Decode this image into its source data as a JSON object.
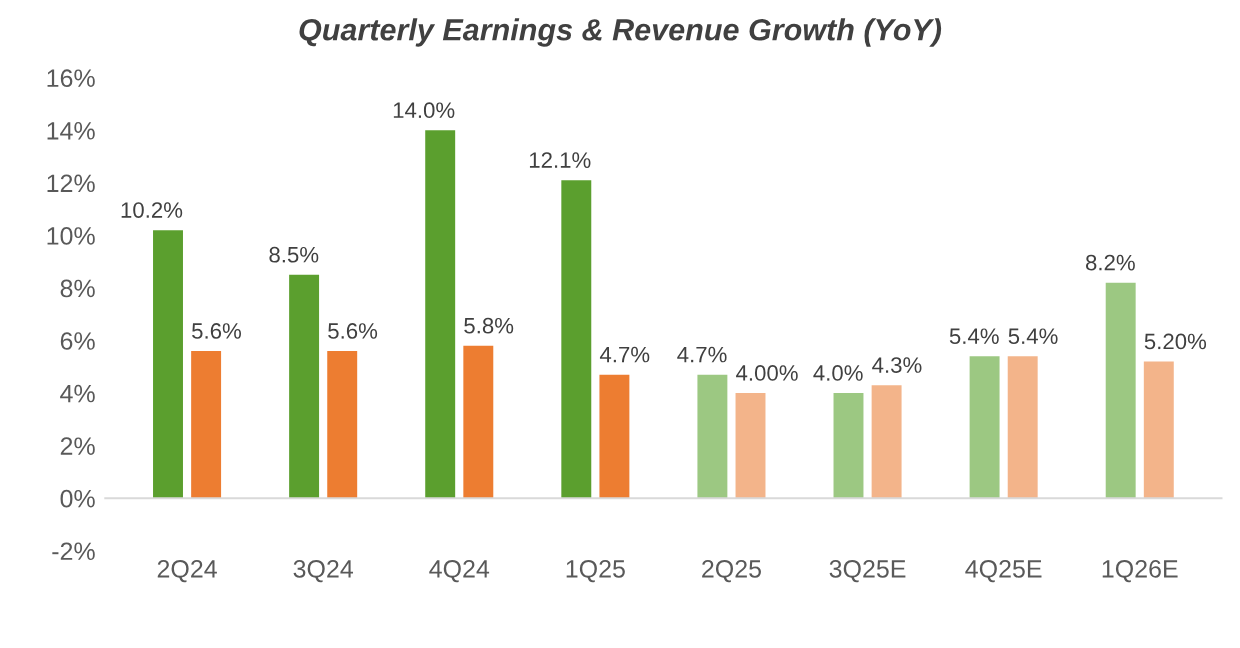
{
  "chart_data": {
    "type": "bar",
    "title": "Quarterly Earnings & Revenue Growth (YoY)",
    "categories": [
      "2Q24",
      "3Q24",
      "4Q24",
      "1Q25",
      "2Q25",
      "3Q25E",
      "4Q25E",
      "1Q26E"
    ],
    "series": [
      {
        "colors": [
          "#5b9f2e",
          "#5b9f2e",
          "#5b9f2e",
          "#5b9f2e",
          "#9cc882",
          "#9cc882",
          "#9cc882",
          "#9cc882"
        ],
        "values": [
          10.2,
          8.5,
          14.0,
          12.1,
          4.7,
          4.0,
          5.4,
          8.2
        ],
        "value_labels": [
          "10.2%",
          "8.5%",
          "14.0%",
          "12.1%",
          "4.7%",
          "4.0%",
          "5.4%",
          "8.2%"
        ]
      },
      {
        "colors": [
          "#ed7d31",
          "#ed7d31",
          "#ed7d31",
          "#ed7d31",
          "#f3b48a",
          "#f3b48a",
          "#f3b48a",
          "#f3b48a"
        ],
        "values": [
          5.6,
          5.6,
          5.8,
          4.7,
          4.0,
          4.3,
          5.4,
          5.2
        ],
        "value_labels": [
          "5.6%",
          "5.6%",
          "5.8%",
          "4.7%",
          "4.00%",
          "4.3%",
          "5.4%",
          "5.20%"
        ]
      }
    ],
    "ylim": [
      -2,
      16
    ],
    "yticks": [
      {
        "value": -2,
        "label": "-2%"
      },
      {
        "value": 0,
        "label": "0%"
      },
      {
        "value": 2,
        "label": "2%"
      },
      {
        "value": 4,
        "label": "4%"
      },
      {
        "value": 6,
        "label": "6%"
      },
      {
        "value": 8,
        "label": "8%"
      },
      {
        "value": 10,
        "label": "10%"
      },
      {
        "value": 12,
        "label": "12%"
      },
      {
        "value": 14,
        "label": "14%"
      },
      {
        "value": 16,
        "label": "16%"
      }
    ],
    "grid": false,
    "legend": false
  }
}
